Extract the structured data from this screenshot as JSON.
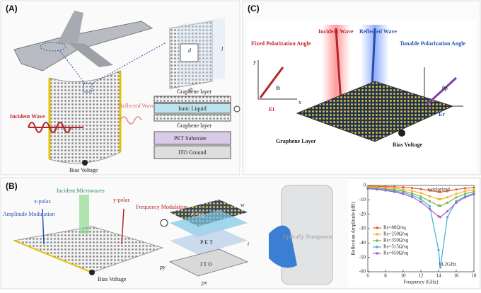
{
  "figure": {
    "a": {
      "label": "(A)",
      "d": "d",
      "l": "l",
      "p": "p",
      "reflected": "Reflected Wave",
      "incident": "Incident Wave",
      "bias": "Bias Voltage",
      "stack": [
        "Graphene layer",
        "Ionic Liquid",
        "Graphene layer",
        "PET Substrate",
        "ITO Ground"
      ]
    },
    "c": {
      "label": "(C)",
      "fixed": "Fixed Polarization Angle",
      "incident": "Incident Wave",
      "reflected": "Reflected Wave",
      "tunable": "Tunable Polarization Angle",
      "ei": "Ei",
      "er": "Er",
      "thi": "θi",
      "thp": "θp",
      "x": "x",
      "y": "y",
      "layer": "Graphene Layer",
      "bias": "Bias Voltage"
    },
    "b": {
      "label": "(B)",
      "incident": "Incident Microwaves",
      "xpolar": "x-polar.",
      "ypolar": "y-polar.",
      "freq": "Frequency Modulation",
      "amp": "Amplitude Modulation",
      "bias": "Bias Voltage",
      "gsl": "G S L",
      "w": "w",
      "pet": "P E T",
      "ito": "I T O",
      "py": "py",
      "px": "px",
      "t": "t",
      "photo": "Optically Transparent"
    }
  },
  "chart_data": {
    "type": "line",
    "xlabel": "Frequency (GHz)",
    "ylabel": "Reflection Amplitude (dB)",
    "annotations": [
      "x-polarized",
      "14.2GHz"
    ],
    "x": [
      6,
      7,
      8,
      9,
      10,
      11,
      12,
      13,
      14,
      14.2,
      15,
      16,
      17,
      18
    ],
    "series": [
      {
        "name": "Rs=80Ω/sq",
        "color": "#e8602c",
        "values": [
          -0.5,
          -0.6,
          -0.8,
          -1,
          -1.3,
          -1.8,
          -2.5,
          -3.5,
          -4.5,
          -4.6,
          -4,
          -2.8,
          -2,
          -1.5
        ]
      },
      {
        "name": "Rs=250Ω/sq",
        "color": "#f2b233",
        "values": [
          -1,
          -1.2,
          -1.6,
          -2.1,
          -2.8,
          -3.8,
          -5.3,
          -7.5,
          -9.5,
          -9.6,
          -8.3,
          -5.8,
          -4,
          -3
        ]
      },
      {
        "name": "Rs=350Ω/sq",
        "color": "#7cb342",
        "values": [
          -1.5,
          -1.8,
          -2.3,
          -3,
          -4,
          -5.5,
          -7.8,
          -11,
          -14,
          -14.2,
          -12,
          -8.3,
          -5.8,
          -4.3
        ]
      },
      {
        "name": "Rs=515Ω/sq",
        "color": "#3fb0d6",
        "values": [
          -2,
          -2.4,
          -3,
          -3.8,
          -5,
          -6.8,
          -9.6,
          -14.5,
          -45,
          -57,
          -22,
          -11,
          -7.5,
          -5.5
        ]
      },
      {
        "name": "Rs=650Ω/sq",
        "color": "#b05cc8",
        "values": [
          -2.3,
          -2.8,
          -3.5,
          -4.5,
          -6,
          -8,
          -11.5,
          -16.5,
          -21.5,
          -22,
          -18,
          -12,
          -8.3,
          -6.2
        ]
      }
    ],
    "xlim": [
      6,
      18
    ],
    "ylim": [
      -60,
      0
    ],
    "xticks": [
      6,
      8,
      10,
      12,
      14,
      16,
      18
    ],
    "yticks": [
      0,
      -10,
      -20,
      -30,
      -40,
      -50,
      -60
    ]
  }
}
